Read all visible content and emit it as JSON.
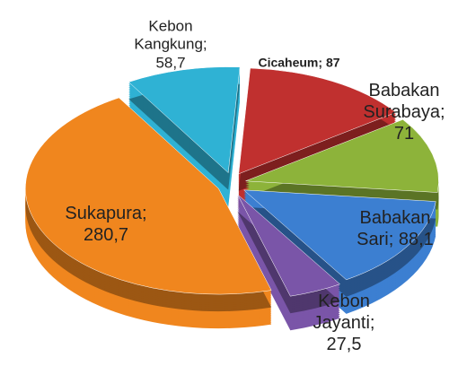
{
  "chart_data": {
    "type": "pie",
    "categories": [
      "Cicaheum",
      "Babakan Surabaya",
      "Babakan Sari",
      "Kebon Jayanti",
      "Sukapura",
      "Kebon Kangkung"
    ],
    "values": [
      87,
      71,
      88.1,
      27.5,
      280.7,
      58.7
    ],
    "value_labels": [
      "87",
      "71",
      "88,1",
      "27,5",
      "280,7",
      "58,7"
    ],
    "label_separator": ";",
    "colors": [
      "#c0302f",
      "#8db33a",
      "#3c7fd1",
      "#7a55a8",
      "#f0861e",
      "#2fb2d4"
    ]
  }
}
